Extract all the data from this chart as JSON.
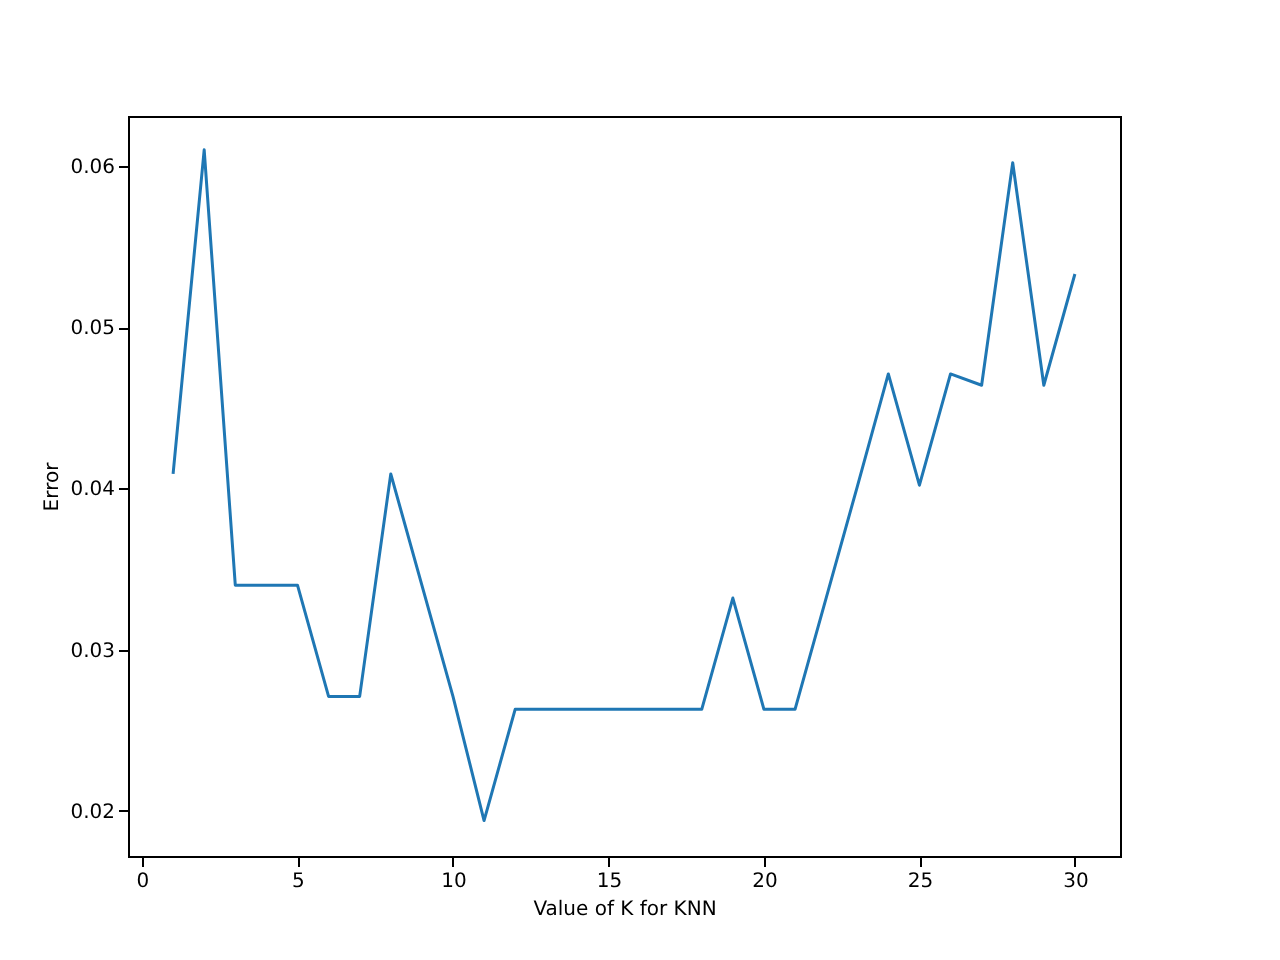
{
  "chart_data": {
    "type": "line",
    "xlabel": "Value of K for KNN",
    "ylabel": "Error",
    "x": [
      1,
      2,
      3,
      4,
      5,
      6,
      7,
      8,
      9,
      10,
      11,
      12,
      13,
      14,
      15,
      16,
      17,
      18,
      19,
      20,
      21,
      22,
      23,
      24,
      25,
      26,
      27,
      28,
      29,
      30
    ],
    "series": [
      {
        "color": "#1f77b4",
        "values": [
          0.0409,
          0.061,
          0.034,
          0.034,
          0.034,
          0.0271,
          0.0271,
          0.0409,
          0.034,
          0.0271,
          0.0194,
          0.0263,
          0.0263,
          0.0263,
          0.0263,
          0.0263,
          0.0263,
          0.0263,
          0.0332,
          0.0263,
          0.0263,
          0.0332,
          0.0401,
          0.0471,
          0.0402,
          0.0471,
          0.0464,
          0.0602,
          0.0464,
          0.0533
        ]
      }
    ],
    "xlim": [
      -0.45,
      31.45
    ],
    "ylim": [
      0.0172,
      0.0631
    ],
    "xticks": [
      0,
      5,
      10,
      15,
      20,
      25,
      30
    ],
    "yticks": [
      0.02,
      0.03,
      0.04,
      0.05,
      0.06
    ],
    "grid": false,
    "marker": "none",
    "line_style": "solid"
  }
}
